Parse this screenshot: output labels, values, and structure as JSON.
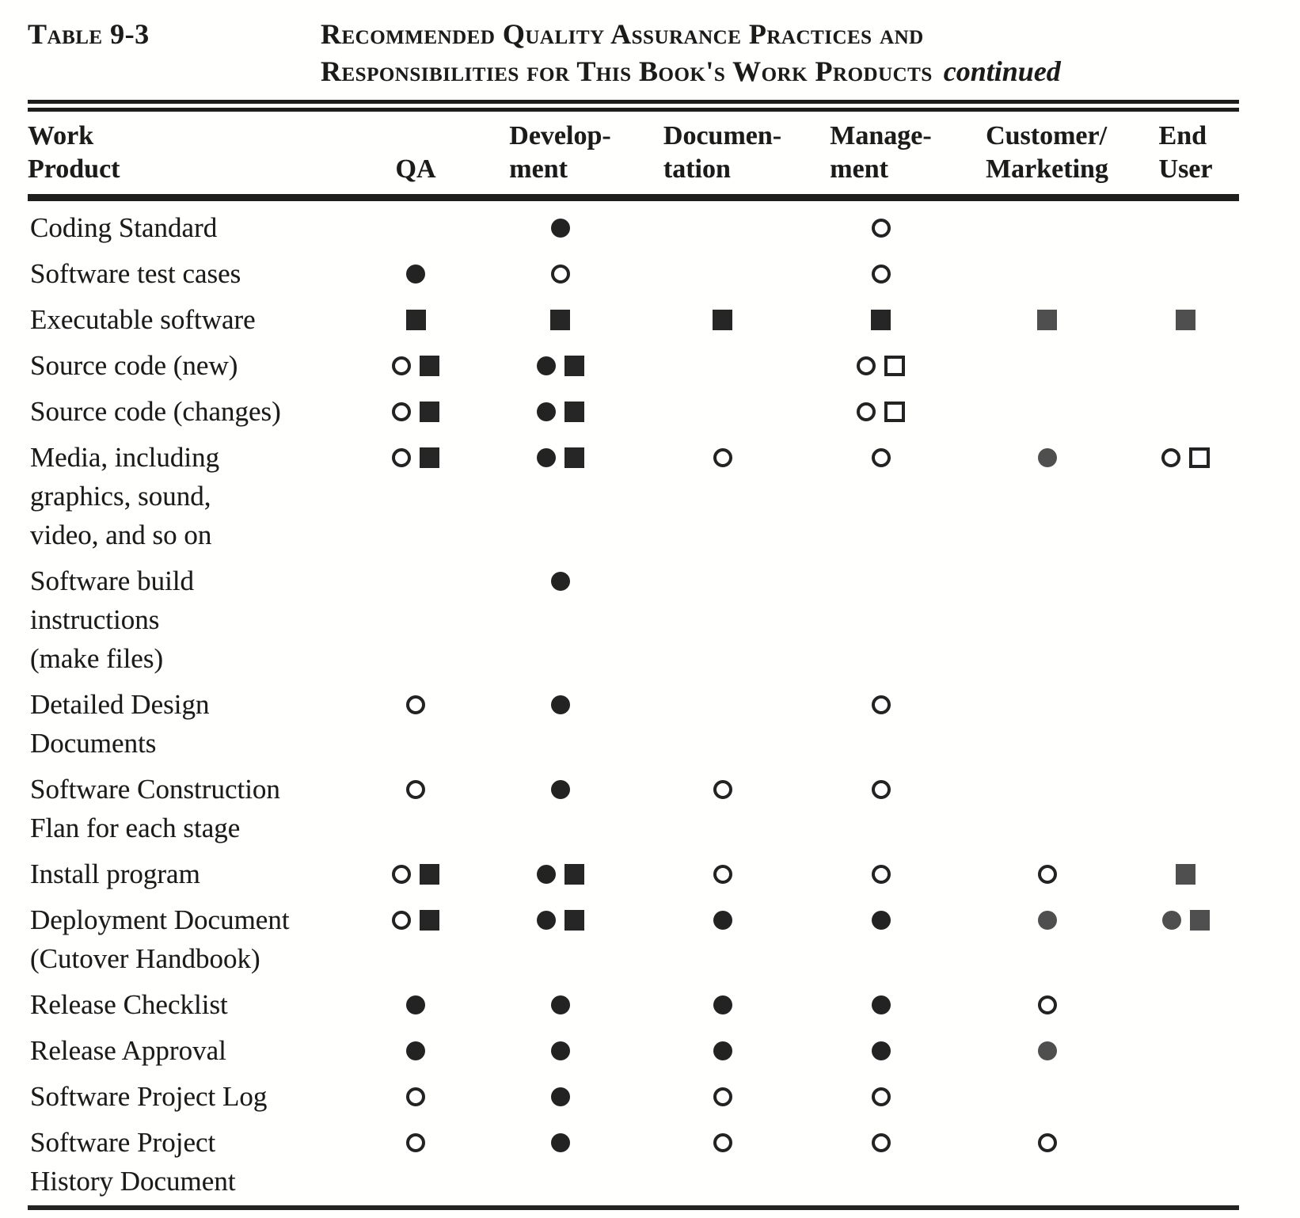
{
  "page": {
    "label": "Table 9-3",
    "title_line1": "Recommended Quality Assurance Practices and",
    "title_line2": "Responsibilities for This Book's Work Products",
    "title_suffix": "continued"
  },
  "table": {
    "columns": [
      {
        "key": "work-product",
        "lines": [
          "Work",
          "Product"
        ]
      },
      {
        "key": "qa",
        "lines": [
          "QA"
        ]
      },
      {
        "key": "development",
        "lines": [
          "Develop-",
          "ment"
        ]
      },
      {
        "key": "documentation",
        "lines": [
          "Documen-",
          "tation"
        ]
      },
      {
        "key": "management",
        "lines": [
          "Manage-",
          "ment"
        ]
      },
      {
        "key": "customer-marketing",
        "lines": [
          "Customer/",
          "Marketing"
        ]
      },
      {
        "key": "end-user",
        "lines": [
          "End",
          "User"
        ]
      }
    ],
    "rows": [
      {
        "name_lines": [
          "Coding Standard"
        ],
        "marks": {
          "qa": [],
          "development": [
            "filled-circle"
          ],
          "documentation": [],
          "management": [
            "open-circle"
          ],
          "customer-marketing": [],
          "end-user": []
        }
      },
      {
        "name_lines": [
          "Software test cases"
        ],
        "marks": {
          "qa": [
            "filled-circle"
          ],
          "development": [
            "open-circle"
          ],
          "documentation": [],
          "management": [
            "open-circle"
          ],
          "customer-marketing": [],
          "end-user": []
        }
      },
      {
        "name_lines": [
          "Executable software"
        ],
        "marks": {
          "qa": [
            "filled-square"
          ],
          "development": [
            "filled-square"
          ],
          "documentation": [
            "filled-square"
          ],
          "management": [
            "filled-square"
          ],
          "customer-marketing": [
            "filled-square-gray"
          ],
          "end-user": [
            "filled-square-gray"
          ]
        }
      },
      {
        "name_lines": [
          "Source code (new)"
        ],
        "marks": {
          "qa": [
            "open-circle",
            "filled-square"
          ],
          "development": [
            "filled-circle",
            "filled-square"
          ],
          "documentation": [],
          "management": [
            "open-circle",
            "open-square"
          ],
          "customer-marketing": [],
          "end-user": []
        }
      },
      {
        "name_lines": [
          "Source code (changes)"
        ],
        "marks": {
          "qa": [
            "open-circle",
            "filled-square"
          ],
          "development": [
            "filled-circle",
            "filled-square"
          ],
          "documentation": [],
          "management": [
            "open-circle",
            "open-square"
          ],
          "customer-marketing": [],
          "end-user": []
        }
      },
      {
        "name_lines": [
          "Media, including",
          "graphics, sound,",
          "video, and so on"
        ],
        "marks": {
          "qa": [
            "open-circle",
            "filled-square"
          ],
          "development": [
            "filled-circle",
            "filled-square"
          ],
          "documentation": [
            "open-circle"
          ],
          "management": [
            "open-circle"
          ],
          "customer-marketing": [
            "filled-circle-gray"
          ],
          "end-user": [
            "open-circle",
            "open-square"
          ]
        }
      },
      {
        "name_lines": [
          "Software build",
          "instructions",
          "(make files)"
        ],
        "marks": {
          "qa": [],
          "development": [
            "filled-circle"
          ],
          "documentation": [],
          "management": [],
          "customer-marketing": [],
          "end-user": []
        }
      },
      {
        "name_lines": [
          "Detailed Design",
          "Documents"
        ],
        "marks": {
          "qa": [
            "open-circle"
          ],
          "development": [
            "filled-circle"
          ],
          "documentation": [],
          "management": [
            "open-circle"
          ],
          "customer-marketing": [],
          "end-user": []
        }
      },
      {
        "name_lines": [
          "Software Construction",
          "Flan for each stage"
        ],
        "marks": {
          "qa": [
            "open-circle"
          ],
          "development": [
            "filled-circle"
          ],
          "documentation": [
            "open-circle"
          ],
          "management": [
            "open-circle"
          ],
          "customer-marketing": [],
          "end-user": []
        }
      },
      {
        "name_lines": [
          "Install program"
        ],
        "marks": {
          "qa": [
            "open-circle",
            "filled-square"
          ],
          "development": [
            "filled-circle",
            "filled-square"
          ],
          "documentation": [
            "open-circle"
          ],
          "management": [
            "open-circle"
          ],
          "customer-marketing": [
            "open-circle"
          ],
          "end-user": [
            "filled-square-gray"
          ]
        }
      },
      {
        "name_lines": [
          "Deployment Document",
          "(Cutover Handbook)"
        ],
        "marks": {
          "qa": [
            "open-circle",
            "filled-square"
          ],
          "development": [
            "filled-circle",
            "filled-square"
          ],
          "documentation": [
            "filled-circle"
          ],
          "management": [
            "filled-circle"
          ],
          "customer-marketing": [
            "filled-circle-gray"
          ],
          "end-user": [
            "filled-circle-gray",
            "filled-square-gray"
          ]
        }
      },
      {
        "name_lines": [
          "Release Checklist"
        ],
        "marks": {
          "qa": [
            "filled-circle"
          ],
          "development": [
            "filled-circle"
          ],
          "documentation": [
            "filled-circle"
          ],
          "management": [
            "filled-circle"
          ],
          "customer-marketing": [
            "open-circle"
          ],
          "end-user": []
        }
      },
      {
        "name_lines": [
          "Release Approval"
        ],
        "marks": {
          "qa": [
            "filled-circle"
          ],
          "development": [
            "filled-circle"
          ],
          "documentation": [
            "filled-circle"
          ],
          "management": [
            "filled-circle"
          ],
          "customer-marketing": [
            "filled-circle-gray"
          ],
          "end-user": []
        }
      },
      {
        "name_lines": [
          "Software Project Log"
        ],
        "marks": {
          "qa": [
            "open-circle"
          ],
          "development": [
            "filled-circle"
          ],
          "documentation": [
            "open-circle"
          ],
          "management": [
            "open-circle"
          ],
          "customer-marketing": [],
          "end-user": []
        }
      },
      {
        "name_lines": [
          "Software Project",
          "History Document"
        ],
        "marks": {
          "qa": [
            "open-circle"
          ],
          "development": [
            "filled-circle"
          ],
          "documentation": [
            "open-circle"
          ],
          "management": [
            "open-circle"
          ],
          "customer-marketing": [
            "open-circle"
          ],
          "end-user": []
        }
      }
    ]
  }
}
